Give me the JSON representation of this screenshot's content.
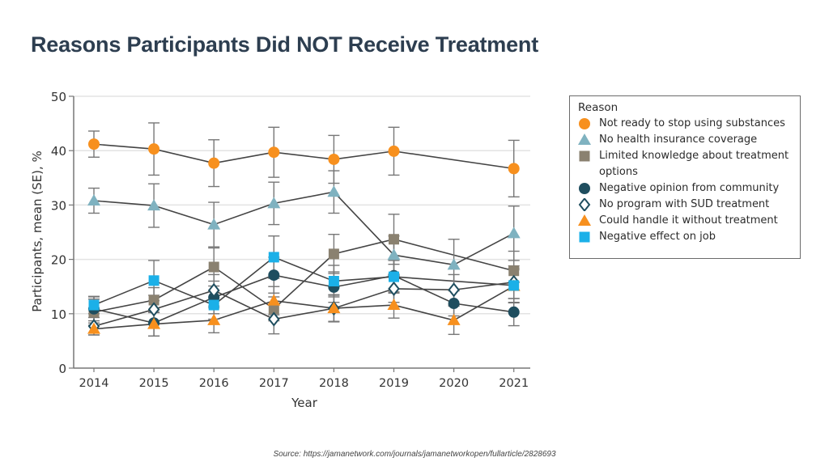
{
  "page": {
    "title": "Reasons Participants Did NOT Receive Treatment",
    "source": "Source: https://jamanetwork.com/journals/jamanetworkopen/fullarticle/2828693"
  },
  "chart_data": {
    "type": "line",
    "title": "",
    "xlabel": "Year",
    "ylabel": "Participants, mean (SE), %",
    "ylim": [
      0,
      50
    ],
    "yticks": [
      "0",
      "10",
      "20",
      "30",
      "40",
      "50"
    ],
    "ytick_values": [
      0,
      10,
      20,
      30,
      40,
      50
    ],
    "x": [
      "2014",
      "2015",
      "2016",
      "2017",
      "2018",
      "2019",
      "2020",
      "2021"
    ],
    "grid": "horizontal",
    "legend_title": "Reason",
    "legend_position": "right",
    "series": [
      {
        "name": "Not ready to stop using substances",
        "marker": "circle",
        "color": "#F7901E",
        "values": [
          41.2,
          40.3,
          37.7,
          39.7,
          38.4,
          39.9,
          null,
          36.7
        ],
        "se": [
          2.4,
          4.8,
          4.3,
          4.6,
          4.4,
          4.4,
          null,
          5.2
        ]
      },
      {
        "name": "No health insurance coverage",
        "marker": "triangle",
        "color": "#7FB2C0",
        "values": [
          30.8,
          29.9,
          26.4,
          30.3,
          32.4,
          20.8,
          19.0,
          24.8
        ],
        "se": [
          2.3,
          4.0,
          4.1,
          3.9,
          3.9,
          3.5,
          4.7,
          5.0
        ]
      },
      {
        "name": "Limited knowledge about treatment options",
        "marker": "square",
        "color": "#8A8170",
        "values": [
          10.3,
          12.5,
          18.6,
          10.9,
          21.0,
          23.7,
          null,
          17.9
        ],
        "se": [
          2.4,
          2.3,
          3.5,
          2.2,
          3.6,
          4.6,
          null,
          3.6
        ]
      },
      {
        "name": "Negative opinion from community",
        "marker": "circle",
        "color": "#1F4E5F",
        "values": [
          10.9,
          8.3,
          13.0,
          17.1,
          14.9,
          17.0,
          11.9,
          10.3
        ],
        "se": [
          2.2,
          2.4,
          3.0,
          3.3,
          2.8,
          3.0,
          2.3,
          2.5
        ]
      },
      {
        "name": "No program with SUD treatment",
        "marker": "diamond-open",
        "color": "#1F4E5F",
        "values": [
          7.7,
          10.8,
          14.3,
          9.0,
          11.0,
          14.6,
          14.4,
          15.8
        ],
        "se": [
          1.6,
          2.6,
          2.9,
          2.7,
          2.5,
          2.5,
          2.8,
          3.0
        ]
      },
      {
        "name": "Could handle it without treatment",
        "marker": "triangle",
        "color": "#F7901E",
        "values": [
          7.2,
          8.1,
          8.8,
          12.4,
          11.0,
          11.6,
          8.8,
          15.1
        ],
        "se": [
          1.1,
          2.2,
          2.3,
          2.6,
          2.4,
          2.4,
          2.6,
          3.0
        ]
      },
      {
        "name": "Negative effect on job",
        "marker": "square",
        "color": "#1BB0E8",
        "values": [
          11.6,
          16.1,
          11.6,
          20.4,
          16.0,
          16.8,
          null,
          15.2
        ],
        "se": [
          1.6,
          3.7,
          2.6,
          3.9,
          2.9,
          3.0,
          null,
          3.2
        ]
      }
    ]
  }
}
